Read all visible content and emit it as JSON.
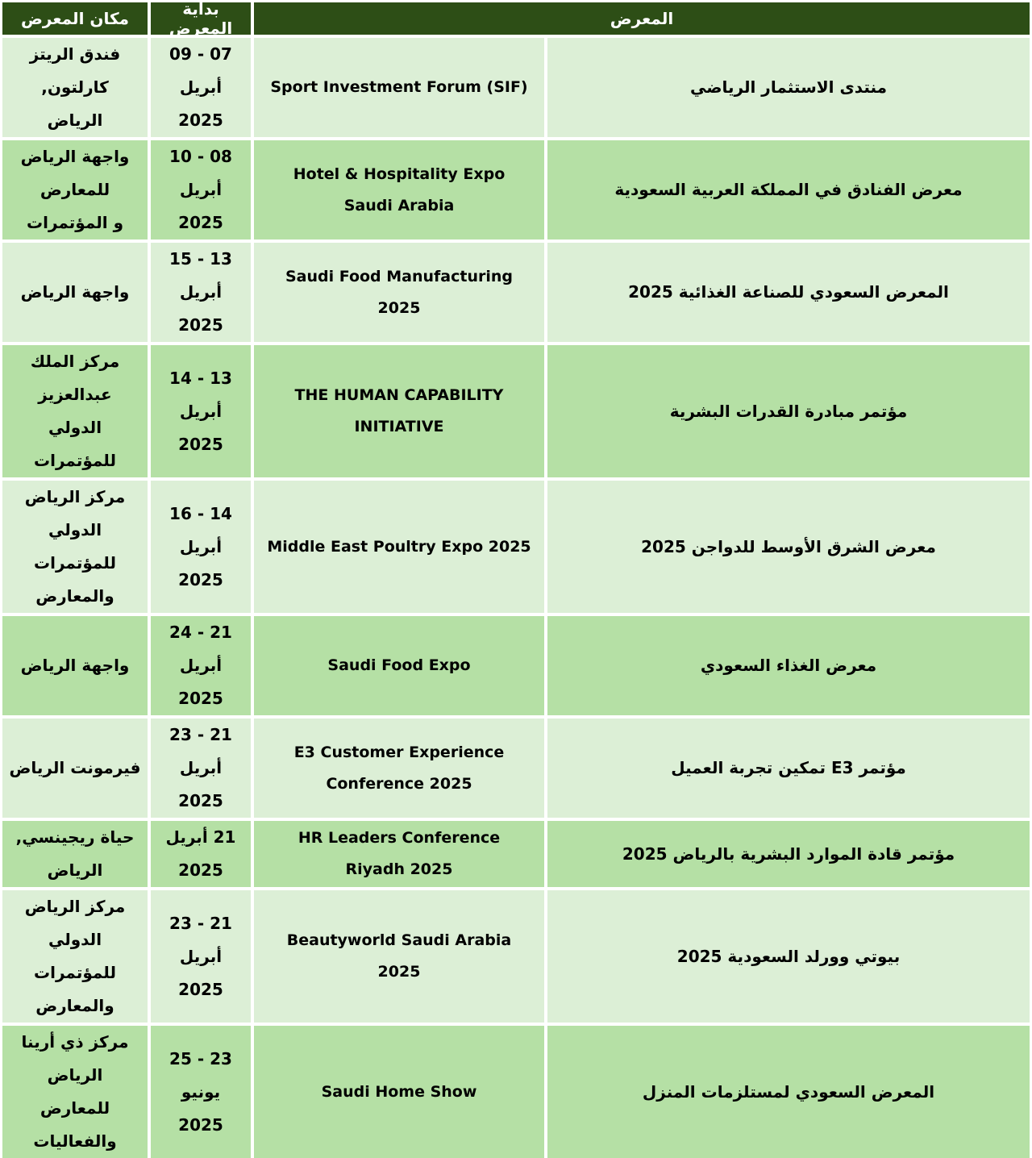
{
  "colors": {
    "header_bg": "#2d4e16",
    "header_text": "#ffffff",
    "row_light": "#dcefd6",
    "row_medium": "#b5e0a5",
    "text": "#000000"
  },
  "table": {
    "headers": {
      "location": "مكان المعرض",
      "start_date": "بداية المعرض",
      "exhibition": "المعرض"
    },
    "rows": [
      {
        "location": "فندق الريتز كارلتون,\nالرياض",
        "date": "07 - 09 أبريل\n2025",
        "name_en": "Sport Investment Forum (SIF)",
        "name_ar": "منتدى الاستثمار الرياضي"
      },
      {
        "location": "واجهة الرياض للمعارض\nو المؤتمرات",
        "date": "08 - 10 أبريل\n2025",
        "name_en": "Hotel & Hospitality Expo\nSaudi Arabia",
        "name_ar": "معرض الفنادق في المملكة العربية السعودية"
      },
      {
        "location": "واجهة الرياض",
        "date": "13 - 15 أبريل\n2025",
        "name_en": "Saudi Food Manufacturing\n2025",
        "name_ar": "المعرض السعودي للصناعة الغذائية 2025"
      },
      {
        "location": "مركز الملك عبدالعزيز\nالدولي للمؤتمرات",
        "date": "13 - 14 أبريل\n2025",
        "name_en": "THE HUMAN CAPABILITY\nINITIATIVE",
        "name_ar": "مؤتمر مبادرة القدرات البشرية"
      },
      {
        "location": "مركز الرياض الدولي\nللمؤتمرات والمعارض",
        "date": "14 - 16 أبريل\n2025",
        "name_en": "Middle East Poultry Expo 2025",
        "name_ar": "معرض الشرق الأوسط للدواجن 2025"
      },
      {
        "location": "واجهة الرياض",
        "date": "21 - 24 أبريل\n2025",
        "name_en": "Saudi Food Expo",
        "name_ar": "معرض الغذاء السعودي"
      },
      {
        "location": "فيرمونت الرياض",
        "date": "21 - 23 أبريل\n2025",
        "name_en": "E3 Customer Experience\nConference 2025",
        "name_ar": "مؤتمر E3 تمكين تجربة العميل"
      },
      {
        "location": "حياة ريجينسي, الرياض",
        "date": "21 أبريل 2025",
        "name_en": "HR Leaders Conference\nRiyadh 2025",
        "name_ar": "مؤتمر قادة الموارد البشرية بالرياض 2025"
      },
      {
        "location": "مركز الرياض الدولي\nللمؤتمرات والمعارض",
        "date": "21 - 23 أبريل\n2025",
        "name_en": "Beautyworld Saudi Arabia\n2025",
        "name_ar": "بيوتي وورلد السعودية 2025"
      },
      {
        "location": "مركز ذي أرينا الرياض\nللمعارض والفعاليات",
        "date": "23 - 25 يونيو\n2025",
        "name_en": "Saudi Home Show",
        "name_ar": "المعرض السعودي لمستلزمات المنزل"
      }
    ]
  }
}
